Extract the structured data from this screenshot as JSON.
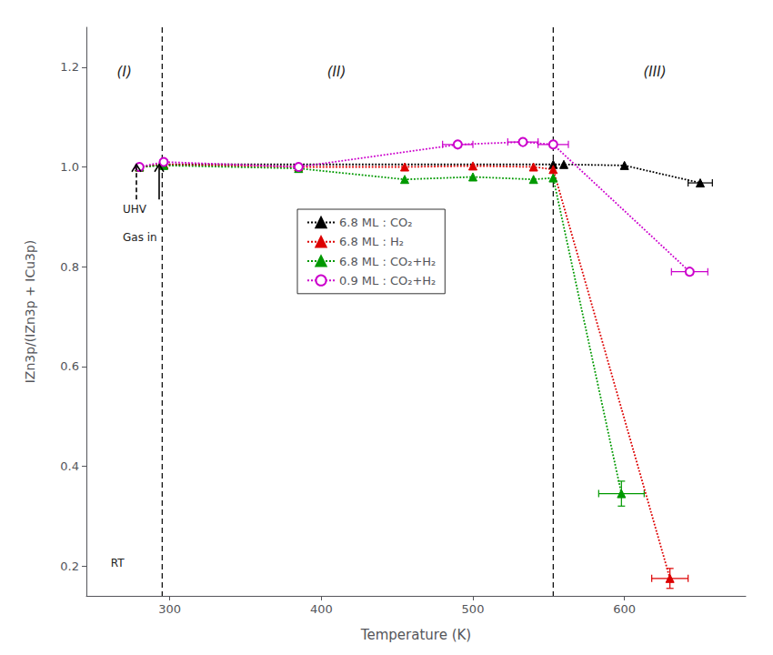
{
  "chart_data": {
    "type": "line",
    "xlabel": "Temperature (K)",
    "ylabel": "IZn3p/(IZn3p + ICu3p)",
    "xlim": [
      245,
      680
    ],
    "ylim": [
      0.14,
      1.28
    ],
    "xticks": [
      300,
      400,
      500,
      600
    ],
    "yticks": [
      0.2,
      0.4,
      0.6,
      0.8,
      {
        "value": 1.0,
        "label": "1.0"
      },
      1.2
    ],
    "grid": false,
    "legend": "center left",
    "series": [
      {
        "name": "6.8 ML : CO₂",
        "color": "#000000",
        "marker": "triangle",
        "line_style": "dotted",
        "x": [
          280,
          296,
          553,
          560,
          600,
          650
        ],
        "values": [
          1.0,
          1.005,
          1.005,
          1.005,
          1.003,
          0.968
        ],
        "xerr": [
          null,
          null,
          null,
          null,
          null,
          8
        ],
        "yerr": [
          null,
          null,
          null,
          null,
          null,
          null
        ]
      },
      {
        "name": "6.8 ML : H₂",
        "color": "#dd0000",
        "marker": "triangle",
        "line_style": "dotted",
        "x": [
          280,
          296,
          385,
          455,
          500,
          540,
          553,
          630
        ],
        "values": [
          1.0,
          1.005,
          1.0,
          1.0,
          1.002,
          1.0,
          0.995,
          0.175
        ],
        "xerr": [
          null,
          null,
          null,
          null,
          null,
          null,
          null,
          12
        ],
        "yerr": [
          null,
          null,
          null,
          null,
          null,
          null,
          null,
          0.02
        ]
      },
      {
        "name": "6.8 ML : CO₂+H₂",
        "color": "#009900",
        "marker": "triangle",
        "line_style": "dotted",
        "x": [
          280,
          296,
          385,
          455,
          500,
          540,
          553,
          598
        ],
        "values": [
          1.0,
          1.003,
          0.997,
          0.975,
          0.98,
          0.975,
          0.978,
          0.345
        ],
        "xerr": [
          null,
          null,
          null,
          null,
          null,
          null,
          null,
          15
        ],
        "yerr": [
          null,
          null,
          null,
          null,
          null,
          null,
          null,
          0.025
        ]
      },
      {
        "name": "0.9 ML : CO₂+H₂",
        "color": "#cc00cc",
        "marker": "open circle",
        "line_style": "dotted",
        "x": [
          280,
          296,
          385,
          490,
          533,
          553,
          643
        ],
        "values": [
          1.0,
          1.01,
          1.0,
          1.045,
          1.05,
          1.045,
          0.79
        ],
        "xerr": [
          null,
          null,
          null,
          10,
          10,
          10,
          12
        ],
        "yerr": [
          null,
          null,
          null,
          null,
          null,
          null,
          null
        ]
      }
    ],
    "vlines": [
      295,
      553
    ],
    "arrows": [
      {
        "x": 278,
        "y_from": 0.935,
        "y_to": 1.005,
        "line_style": "dashed"
      },
      {
        "x": 293,
        "y_from": 0.935,
        "y_to": 1.005,
        "line_style": "solid"
      }
    ],
    "region_labels": [
      {
        "text": "(I)",
        "x": 270,
        "y": 1.19
      },
      {
        "text": "(II)",
        "x": 410,
        "y": 1.19
      },
      {
        "text": "(III)",
        "x": 620,
        "y": 1.19
      }
    ],
    "annotations": [
      {
        "text": "UHV",
        "x": 269,
        "y": 0.915
      },
      {
        "text": "Gas in",
        "x": 269,
        "y": 0.858
      },
      {
        "text": "RT",
        "x": 261,
        "y": 0.205
      }
    ]
  }
}
